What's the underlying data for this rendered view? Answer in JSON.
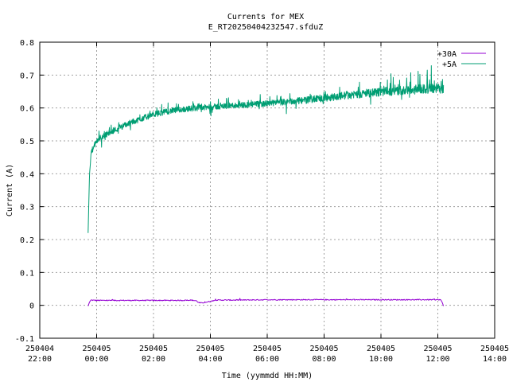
{
  "chart_data": {
    "type": "line",
    "title": "Currents for MEX",
    "subtitle": "E_RT20250404232547.sfduZ",
    "xlabel": "Time (yymmdd HH:MM)",
    "ylabel": "Current (A)",
    "xlim_hours": [
      -2,
      14
    ],
    "ylim": [
      -0.1,
      0.8
    ],
    "y_ticks": [
      "-0.1",
      "0",
      "0.1",
      "0.2",
      "0.3",
      "0.4",
      "0.5",
      "0.6",
      "0.7",
      "0.8"
    ],
    "x_ticks": [
      {
        "date": "250404",
        "time": "22:00"
      },
      {
        "date": "250405",
        "time": "00:00"
      },
      {
        "date": "250405",
        "time": "02:00"
      },
      {
        "date": "250405",
        "time": "04:00"
      },
      {
        "date": "250405",
        "time": "06:00"
      },
      {
        "date": "250405",
        "time": "08:00"
      },
      {
        "date": "250405",
        "time": "10:00"
      },
      {
        "date": "250405",
        "time": "12:00"
      },
      {
        "date": "250405",
        "time": "14:00"
      }
    ],
    "grid": true,
    "legend_position": "top-right",
    "series": [
      {
        "name": "+30A",
        "color": "#9400d3",
        "x": [
          -0.3,
          -0.25,
          -0.2,
          0.0,
          1.0,
          2.0,
          3.0,
          3.3,
          3.5,
          3.6,
          3.7,
          3.8,
          4.0,
          4.2,
          5.0,
          6.0,
          7.0,
          8.0,
          9.0,
          10.0,
          11.0,
          12.0,
          12.1,
          12.15,
          12.2
        ],
        "y": [
          -0.002,
          0.01,
          0.016,
          0.015,
          0.015,
          0.015,
          0.015,
          0.016,
          0.014,
          0.008,
          0.007,
          0.009,
          0.012,
          0.016,
          0.016,
          0.017,
          0.017,
          0.017,
          0.017,
          0.017,
          0.017,
          0.017,
          0.017,
          0.01,
          -0.002
        ]
      },
      {
        "name": "+5A",
        "color": "#009e73",
        "x": [
          -0.3,
          -0.27,
          -0.25,
          -0.22,
          -0.2,
          -0.1,
          0.0,
          0.1,
          0.2,
          0.3,
          0.5,
          0.75,
          1.0,
          1.25,
          1.5,
          1.75,
          2.0,
          2.25,
          2.5,
          2.75,
          3.0,
          3.5,
          4.0,
          4.5,
          5.0,
          5.5,
          6.0,
          6.5,
          7.0,
          7.5,
          8.0,
          8.5,
          9.0,
          9.5,
          10.0,
          10.5,
          11.0,
          11.5,
          12.0,
          12.2
        ],
        "y": [
          0.22,
          0.33,
          0.4,
          0.43,
          0.46,
          0.48,
          0.495,
          0.505,
          0.51,
          0.515,
          0.525,
          0.535,
          0.545,
          0.555,
          0.562,
          0.57,
          0.578,
          0.582,
          0.587,
          0.59,
          0.593,
          0.597,
          0.6,
          0.603,
          0.606,
          0.608,
          0.611,
          0.614,
          0.618,
          0.622,
          0.627,
          0.632,
          0.637,
          0.64,
          0.645,
          0.648,
          0.651,
          0.653,
          0.655,
          0.655
        ]
      }
    ]
  }
}
